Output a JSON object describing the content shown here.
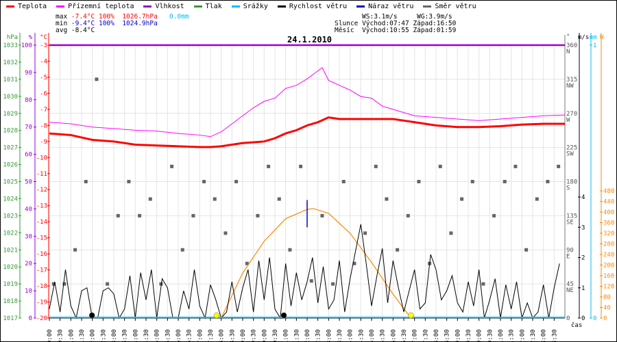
{
  "legend": [
    {
      "label": "Teplota",
      "color": "#ff0000"
    },
    {
      "label": "Přízemní teplota",
      "color": "#ff00ff"
    },
    {
      "label": "Vlhkost",
      "color": "#9900cc"
    },
    {
      "label": "Tlak",
      "color": "#339933"
    },
    {
      "label": "Srážky",
      "color": "#00bbff"
    },
    {
      "label": "Rychlost větru",
      "color": "#000000"
    },
    {
      "label": "Náraz větru",
      "color": "#0000cc"
    },
    {
      "label": "Směr větru",
      "color": "#666666"
    }
  ],
  "stats": {
    "max_label": "max",
    "max_temp": "-7.4°C",
    "max_hum": "100%",
    "max_press": "1026.7hPa",
    "max_rain": "0.0mm",
    "min_label": "min",
    "min_temp": "-9.4°C",
    "min_hum": "100%",
    "min_press": "1024.9hPa",
    "avg_label": "avg",
    "avg_temp": "-8.4°C"
  },
  "astro": {
    "ws": "WS:3.1m/s",
    "wg": "WG:3.9m/s",
    "sun_label": "Slunce",
    "sunrise": "Východ:07:47",
    "sunset": "Západ:16:50",
    "moon_label": "Měsíc",
    "moonrise": "Východ:10:55",
    "moonset": "Západ:01:59"
  },
  "chart_data": {
    "type": "line",
    "title": "24.1.2010",
    "xlabel": "čas",
    "x_ticks": [
      "00:00",
      "00:30",
      "01:00",
      "01:30",
      "02:00",
      "02:30",
      "03:00",
      "03:30",
      "04:00",
      "04:30",
      "05:00",
      "05:30",
      "06:00",
      "06:30",
      "07:00",
      "07:30",
      "08:00",
      "08:30",
      "09:00",
      "09:30",
      "10:00",
      "10:30",
      "11:00",
      "11:30",
      "12:00",
      "12:30",
      "13:00",
      "13:30",
      "14:00",
      "14:30",
      "15:00",
      "15:30",
      "16:00",
      "16:30",
      "17:00",
      "17:30",
      "18:00",
      "18:30",
      "19:00",
      "19:30",
      "20:00",
      "20:30",
      "21:00",
      "21:30",
      "22:00",
      "22:30",
      "23:00",
      "23:30"
    ],
    "xlim_hours": [
      0,
      24
    ],
    "grid": true,
    "axes": {
      "pressure": {
        "unit": "hPa",
        "range": [
          1017,
          1033
        ],
        "color": "#339933"
      },
      "humidity": {
        "unit": "%",
        "range": [
          0,
          100
        ],
        "color": "#9900cc"
      },
      "temperature": {
        "unit": "°C",
        "range": [
          -20,
          -3
        ],
        "color": "#ff0000"
      },
      "direction": {
        "unit": "°",
        "range": [
          0,
          360
        ],
        "ticks": [
          {
            "v": 360,
            "l": "N"
          },
          {
            "v": 315,
            "l": "NW"
          },
          {
            "v": 270,
            "l": "W"
          },
          {
            "v": 225,
            "l": "SW"
          },
          {
            "v": 180,
            "l": "S"
          },
          {
            "v": 135,
            "l": "SE"
          },
          {
            "v": 90,
            "l": "E"
          },
          {
            "v": 45,
            "l": "NE"
          },
          {
            "v": 0,
            "l": ""
          }
        ],
        "color": "#666666"
      },
      "wind": {
        "unit": "m/s",
        "range": [
          0,
          4
        ],
        "color": "#000000"
      },
      "rain": {
        "unit": "mm",
        "range": [
          0,
          1
        ],
        "color": "#00bbff"
      },
      "solar": {
        "unit": "W",
        "range": [
          0,
          480
        ],
        "color": "#ff8800"
      }
    },
    "series": [
      {
        "name": "Teplota",
        "color": "#ff0000",
        "hours": [
          0,
          1,
          2,
          3,
          4,
          5,
          6,
          7,
          7.5,
          8,
          9,
          10,
          10.5,
          11,
          11.5,
          12,
          12.5,
          13,
          13.5,
          14,
          15,
          16,
          16.5,
          17,
          18,
          19,
          20,
          21,
          22,
          23,
          24
        ],
        "values": [
          -8.5,
          -8.6,
          -8.9,
          -9.0,
          -9.2,
          -9.25,
          -9.3,
          -9.35,
          -9.35,
          -9.3,
          -9.1,
          -9.0,
          -8.8,
          -8.5,
          -8.3,
          -8.0,
          -7.8,
          -7.5,
          -7.6,
          -7.6,
          -7.6,
          -7.6,
          -7.7,
          -7.8,
          -8.0,
          -8.1,
          -8.1,
          -8.05,
          -7.95,
          -7.9,
          -7.9
        ]
      },
      {
        "name": "Přízemní teplota",
        "color": "#ff00ff",
        "hours": [
          0,
          1,
          2,
          3,
          4,
          5,
          6,
          7,
          7.5,
          8,
          8.5,
          9,
          9.5,
          10,
          10.5,
          11,
          11.5,
          12,
          12.3,
          12.7,
          13,
          13.5,
          14,
          14.5,
          15,
          15.5,
          16,
          17,
          18,
          19,
          20,
          21,
          22,
          23,
          24
        ],
        "values": [
          -7.8,
          -7.9,
          -8.1,
          -8.2,
          -8.3,
          -8.35,
          -8.5,
          -8.6,
          -8.7,
          -8.4,
          -7.9,
          -7.4,
          -6.9,
          -6.5,
          -6.3,
          -5.7,
          -5.5,
          -5.1,
          -4.8,
          -4.4,
          -5.2,
          -5.5,
          -5.8,
          -6.2,
          -6.3,
          -6.8,
          -7.0,
          -7.4,
          -7.5,
          -7.6,
          -7.7,
          -7.6,
          -7.5,
          -7.4,
          -7.35
        ]
      },
      {
        "name": "Vlhkost",
        "color": "#9900cc",
        "hours": [
          0,
          24
        ],
        "values": [
          100,
          100
        ]
      },
      {
        "name": "Srážky",
        "color": "#00bbff",
        "hours": [
          0,
          24
        ],
        "values": [
          0,
          0
        ]
      },
      {
        "name": "Rychlost větru",
        "color": "#000000",
        "step_minutes": 15,
        "values": [
          0.3,
          1.2,
          0.2,
          1.6,
          0.4,
          0,
          0.9,
          1.0,
          0,
          0,
          0.9,
          1.0,
          0.8,
          0,
          0.3,
          1.4,
          0,
          1.5,
          0.6,
          1.6,
          0,
          1.3,
          1.0,
          0,
          0,
          0.9,
          0.3,
          1.6,
          0.4,
          0,
          1.1,
          0.6,
          0,
          0.2,
          1.2,
          0.2,
          1.0,
          1.6,
          0.2,
          1.9,
          0.6,
          2.0,
          0.3,
          0,
          1.8,
          0.4,
          1.5,
          0.6,
          1.2,
          2.0,
          0.5,
          1.7,
          0.3,
          0.6,
          1.9,
          0.2,
          1.3,
          2.2,
          3.1,
          1.8,
          0.4,
          1.4,
          2.3,
          0.5,
          1.9,
          1.0,
          0.2,
          0.9,
          1.6,
          0.3,
          0.5,
          2.1,
          1.6,
          0.6,
          0.9,
          1.4,
          0.5,
          0.2,
          1.2,
          0.4,
          1.6,
          0,
          0.6,
          1.3,
          0,
          1.1,
          0.3,
          1.2,
          0,
          0.5,
          0,
          0.2,
          1.1,
          0,
          1.0,
          1.8
        ]
      },
      {
        "name": "Náraz větru",
        "color": "#0000cc",
        "hours": [
          12.0
        ],
        "values": [
          3.9
        ]
      },
      {
        "name": "Směr větru",
        "color": "#666666",
        "step_minutes": 30,
        "values": [
          45,
          45,
          90,
          180,
          315,
          45,
          135,
          180,
          135,
          157,
          45,
          200,
          90,
          135,
          180,
          157,
          112,
          180,
          72,
          135,
          200,
          157,
          90,
          200,
          49,
          135,
          45,
          180,
          72,
          112,
          200,
          157,
          90,
          135,
          180,
          72,
          200,
          112,
          157,
          180,
          45,
          135,
          180,
          200,
          90,
          157,
          180,
          200
        ]
      },
      {
        "name": "Solar",
        "color": "#ff8800",
        "hours": [
          8.0,
          9,
          10,
          11,
          12,
          12.3,
          13,
          14,
          15,
          16,
          16.83
        ],
        "values": [
          0,
          170,
          290,
          375,
          410,
          413,
          395,
          320,
          210,
          90,
          0
        ]
      }
    ],
    "markers": [
      {
        "type": "sunrise",
        "time": "07:47",
        "color": "#ffff00"
      },
      {
        "type": "sunset",
        "time": "16:50",
        "color": "#ffff00"
      },
      {
        "type": "moonrise",
        "time": "10:55",
        "color": "#000000"
      },
      {
        "type": "moonset",
        "time": "01:59",
        "color": "#000000"
      }
    ]
  }
}
